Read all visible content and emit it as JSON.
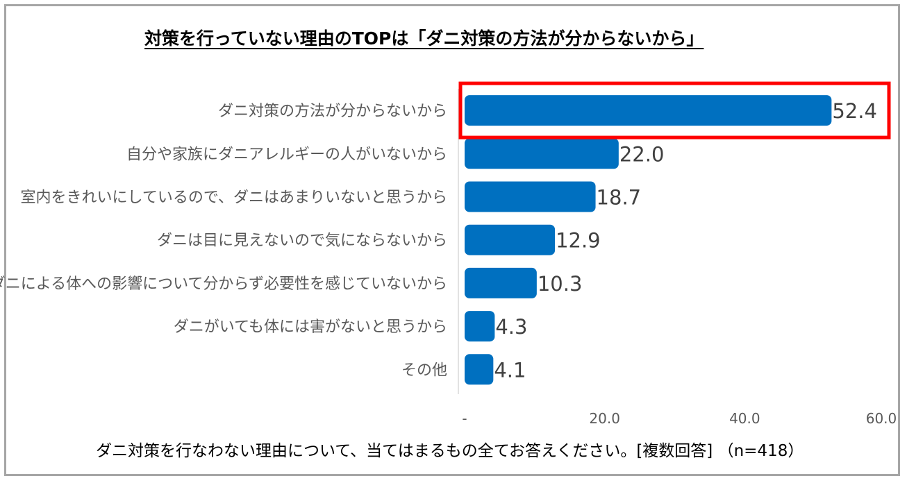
{
  "title": "対策を行っていない理由のTOPは「ダニ対策の方法が分からないから」",
  "caption": "ダニ対策を行なわない理由について、当てはまるもの全てお答えください。[複数回答] （n=418）",
  "colors": {
    "bar": "#0070c0",
    "highlight": "#ff0000",
    "axis": "#d9d9d9",
    "frame": "#a6a6a6"
  },
  "chart_data": {
    "type": "bar",
    "orientation": "horizontal",
    "categories": [
      "ダニ対策の方法が分からないから",
      "自分や家族にダニアレルギーの人がいないから",
      "室内をきれいにしているので、ダニはあまりいないと思うから",
      "ダニは目に見えないので気にならないから",
      "ダニによる体への影響について分からず必要性を感じていないから",
      "ダニがいても体には害がないと思うから",
      "その他"
    ],
    "values": [
      52.4,
      22.0,
      18.7,
      12.9,
      10.3,
      4.3,
      4.1
    ],
    "value_labels": [
      "52.4",
      "22.0",
      "18.7",
      "12.9",
      "10.3",
      "4.3",
      "4.1"
    ],
    "xlim": [
      0,
      60
    ],
    "xticks": [
      "-",
      "20.0",
      "40.0",
      "60.0"
    ],
    "highlighted_category": "ダニ対策の方法が分からないから"
  }
}
